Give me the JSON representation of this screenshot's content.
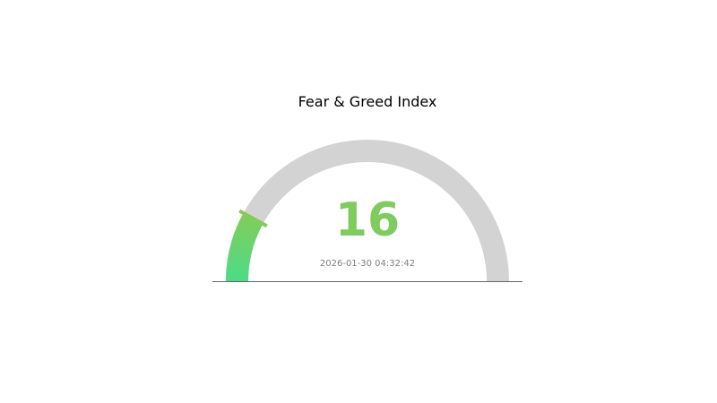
{
  "chart_data": {
    "type": "gauge",
    "title": "Fear & Greed Index",
    "value": 16,
    "min": 0,
    "max": 100,
    "timestamp": "2026-01-30 04:32:42",
    "colors": {
      "track": "#d3d3d3",
      "fill_start": "#4cdc86",
      "fill_end": "#84cc5a",
      "value_text": "#7ecb5e",
      "timestamp_text": "#808080",
      "baseline": "#666666"
    }
  }
}
